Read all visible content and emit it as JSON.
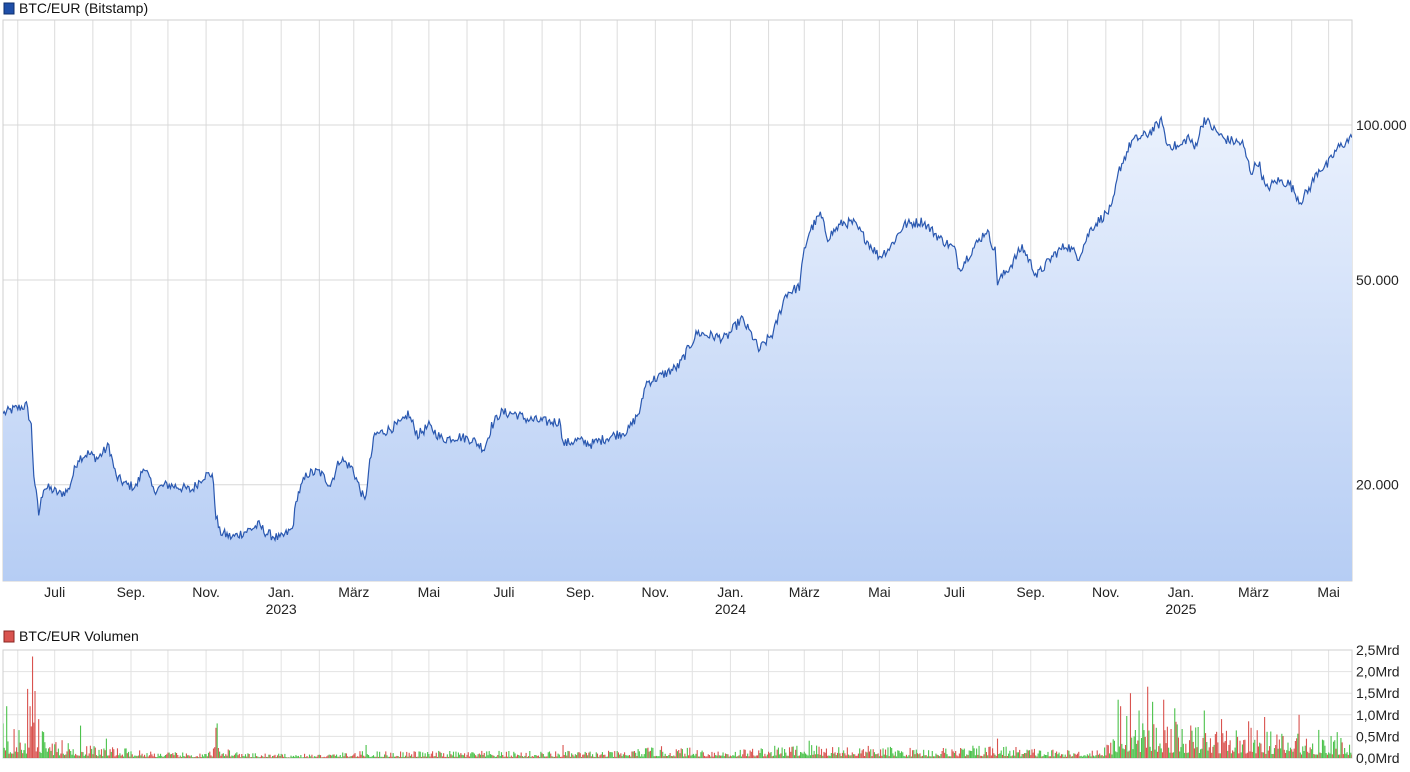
{
  "price_panel": {
    "legend_label": "BTC/EUR (Bitstamp)",
    "legend_color": "#1f4fa8",
    "line_color": "#2a58b0",
    "fill_top_color": "#eaf1fd",
    "fill_bottom_color": "#b6cdf4"
  },
  "volume_panel": {
    "legend_label": "BTC/EUR Volumen",
    "legend_color": "#d9534f",
    "up_color": "#4cc24c",
    "down_color": "#d9534f"
  },
  "chart_data": [
    {
      "type": "area",
      "title": "BTC/EUR (Bitstamp)",
      "y_scale": "log",
      "ylim": [
        13000,
        160000
      ],
      "y_ticks": [
        {
          "value": 20000,
          "label": "20.000"
        },
        {
          "value": 50000,
          "label": "50.000"
        },
        {
          "value": 100000,
          "label": "100.000"
        }
      ],
      "x_range": [
        "2022-05-20",
        "2025-05-20"
      ],
      "x_ticks": [
        {
          "date": "2022-07-01",
          "label": "Juli",
          "sub": ""
        },
        {
          "date": "2022-09-01",
          "label": "Sep.",
          "sub": ""
        },
        {
          "date": "2022-11-01",
          "label": "Nov.",
          "sub": ""
        },
        {
          "date": "2023-01-01",
          "label": "Jan.",
          "sub": "2023"
        },
        {
          "date": "2023-03-01",
          "label": "März",
          "sub": ""
        },
        {
          "date": "2023-05-01",
          "label": "Mai",
          "sub": ""
        },
        {
          "date": "2023-07-01",
          "label": "Juli",
          "sub": ""
        },
        {
          "date": "2023-09-01",
          "label": "Sep.",
          "sub": ""
        },
        {
          "date": "2023-11-01",
          "label": "Nov.",
          "sub": ""
        },
        {
          "date": "2024-01-01",
          "label": "Jan.",
          "sub": "2024"
        },
        {
          "date": "2024-03-01",
          "label": "März",
          "sub": ""
        },
        {
          "date": "2024-05-01",
          "label": "Mai",
          "sub": ""
        },
        {
          "date": "2024-07-01",
          "label": "Juli",
          "sub": ""
        },
        {
          "date": "2024-09-01",
          "label": "Sep.",
          "sub": ""
        },
        {
          "date": "2024-11-01",
          "label": "Nov.",
          "sub": ""
        },
        {
          "date": "2025-01-01",
          "label": "Jan.",
          "sub": "2025"
        },
        {
          "date": "2025-03-01",
          "label": "März",
          "sub": ""
        },
        {
          "date": "2025-05-01",
          "label": "Mai",
          "sub": ""
        }
      ],
      "grid": true,
      "series": [
        {
          "points": [
            [
              "2022-05-20",
              27500
            ],
            [
              "2022-05-28",
              28000
            ],
            [
              "2022-06-08",
              28500
            ],
            [
              "2022-06-12",
              26000
            ],
            [
              "2022-06-14",
              21000
            ],
            [
              "2022-06-18",
              17500
            ],
            [
              "2022-06-22",
              19800
            ],
            [
              "2022-06-28",
              19600
            ],
            [
              "2022-07-05",
              19200
            ],
            [
              "2022-07-12",
              19500
            ],
            [
              "2022-07-20",
              22500
            ],
            [
              "2022-07-28",
              23000
            ],
            [
              "2022-08-05",
              22500
            ],
            [
              "2022-08-14",
              23800
            ],
            [
              "2022-08-20",
              20700
            ],
            [
              "2022-08-28",
              20000
            ],
            [
              "2022-09-05",
              19800
            ],
            [
              "2022-09-12",
              21800
            ],
            [
              "2022-09-19",
              19500
            ],
            [
              "2022-09-30",
              20000
            ],
            [
              "2022-10-10",
              19800
            ],
            [
              "2022-10-20",
              19500
            ],
            [
              "2022-10-30",
              20800
            ],
            [
              "2022-11-06",
              21000
            ],
            [
              "2022-11-09",
              17500
            ],
            [
              "2022-11-12",
              16200
            ],
            [
              "2022-11-22",
              15800
            ],
            [
              "2022-12-05",
              16300
            ],
            [
              "2022-12-14",
              16700
            ],
            [
              "2022-12-20",
              16100
            ],
            [
              "2022-12-31",
              15700
            ],
            [
              "2023-01-10",
              16400
            ],
            [
              "2023-01-14",
              19000
            ],
            [
              "2023-01-22",
              21000
            ],
            [
              "2023-02-01",
              21200
            ],
            [
              "2023-02-10",
              20000
            ],
            [
              "2023-02-18",
              22500
            ],
            [
              "2023-02-28",
              21500
            ],
            [
              "2023-03-10",
              18500
            ],
            [
              "2023-03-14",
              22000
            ],
            [
              "2023-03-18",
              25000
            ],
            [
              "2023-03-28",
              25500
            ],
            [
              "2023-04-10",
              26500
            ],
            [
              "2023-04-14",
              27500
            ],
            [
              "2023-04-22",
              25000
            ],
            [
              "2023-05-01",
              26000
            ],
            [
              "2023-05-12",
              24500
            ],
            [
              "2023-05-25",
              24800
            ],
            [
              "2023-06-05",
              24500
            ],
            [
              "2023-06-15",
              23500
            ],
            [
              "2023-06-21",
              26000
            ],
            [
              "2023-06-28",
              27600
            ],
            [
              "2023-07-10",
              27500
            ],
            [
              "2023-07-20",
              26800
            ],
            [
              "2023-08-05",
              26500
            ],
            [
              "2023-08-16",
              26500
            ],
            [
              "2023-08-18",
              24000
            ],
            [
              "2023-08-30",
              24400
            ],
            [
              "2023-09-10",
              24000
            ],
            [
              "2023-09-25",
              24800
            ],
            [
              "2023-10-10",
              25500
            ],
            [
              "2023-10-20",
              28000
            ],
            [
              "2023-10-24",
              31500
            ],
            [
              "2023-11-05",
              32500
            ],
            [
              "2023-11-20",
              34000
            ],
            [
              "2023-12-05",
              39500
            ],
            [
              "2023-12-15",
              39000
            ],
            [
              "2023-12-28",
              38500
            ],
            [
              "2024-01-10",
              42000
            ],
            [
              "2024-01-20",
              38500
            ],
            [
              "2024-01-24",
              36500
            ],
            [
              "2024-02-05",
              39500
            ],
            [
              "2024-02-15",
              47000
            ],
            [
              "2024-02-26",
              48500
            ],
            [
              "2024-03-01",
              57000
            ],
            [
              "2024-03-05",
              62000
            ],
            [
              "2024-03-14",
              67000
            ],
            [
              "2024-03-20",
              60500
            ],
            [
              "2024-04-01",
              64500
            ],
            [
              "2024-04-10",
              64500
            ],
            [
              "2024-04-20",
              60000
            ],
            [
              "2024-05-01",
              55500
            ],
            [
              "2024-05-10",
              58000
            ],
            [
              "2024-05-21",
              64000
            ],
            [
              "2024-06-05",
              65000
            ],
            [
              "2024-06-20",
              60000
            ],
            [
              "2024-07-01",
              57500
            ],
            [
              "2024-07-05",
              52500
            ],
            [
              "2024-07-15",
              57000
            ],
            [
              "2024-07-27",
              62500
            ],
            [
              "2024-08-03",
              57000
            ],
            [
              "2024-08-05",
              49500
            ],
            [
              "2024-08-15",
              53000
            ],
            [
              "2024-08-25",
              58000
            ],
            [
              "2024-09-06",
              51000
            ],
            [
              "2024-09-20",
              56000
            ],
            [
              "2024-09-30",
              58500
            ],
            [
              "2024-10-10",
              55500
            ],
            [
              "2024-10-20",
              63000
            ],
            [
              "2024-10-30",
              66500
            ],
            [
              "2024-11-06",
              69000
            ],
            [
              "2024-11-12",
              82000
            ],
            [
              "2024-11-22",
              93000
            ],
            [
              "2024-12-05",
              96000
            ],
            [
              "2024-12-17",
              102000
            ],
            [
              "2024-12-20",
              92000
            ],
            [
              "2024-12-31",
              90500
            ],
            [
              "2025-01-07",
              95000
            ],
            [
              "2025-01-12",
              90000
            ],
            [
              "2025-01-20",
              103000
            ],
            [
              "2025-01-28",
              98000
            ],
            [
              "2025-02-05",
              94000
            ],
            [
              "2025-02-20",
              92000
            ],
            [
              "2025-02-27",
              81000
            ],
            [
              "2025-03-05",
              85000
            ],
            [
              "2025-03-11",
              75000
            ],
            [
              "2025-03-20",
              78000
            ],
            [
              "2025-03-30",
              77000
            ],
            [
              "2025-04-08",
              71000
            ],
            [
              "2025-04-15",
              75000
            ],
            [
              "2025-04-23",
              82000
            ],
            [
              "2025-04-30",
              83500
            ],
            [
              "2025-05-08",
              90000
            ],
            [
              "2025-05-16",
              93000
            ],
            [
              "2025-05-20",
              94500
            ]
          ]
        }
      ]
    },
    {
      "type": "bar",
      "title": "BTC/EUR Volumen",
      "ylim": [
        0,
        2.5
      ],
      "y_unit": "Mrd",
      "y_ticks": [
        {
          "value": 0,
          "label": "0,0Mrd"
        },
        {
          "value": 0.5,
          "label": "0,5Mrd"
        },
        {
          "value": 1.0,
          "label": "1,0Mrd"
        },
        {
          "value": 1.5,
          "label": "1,5Mrd"
        },
        {
          "value": 2.0,
          "label": "2,0Mrd"
        },
        {
          "value": 2.5,
          "label": "2,5Mrd"
        }
      ],
      "x_range": [
        "2022-05-20",
        "2025-05-20"
      ],
      "volume_envelope": [
        [
          "2022-05-20",
          0.5
        ],
        [
          "2022-06-10",
          0.5
        ],
        [
          "2022-06-15",
          0.75
        ],
        [
          "2022-06-25",
          0.35
        ],
        [
          "2022-08-01",
          0.22
        ],
        [
          "2022-10-01",
          0.1
        ],
        [
          "2022-11-01",
          0.08
        ],
        [
          "2022-11-12",
          0.25
        ],
        [
          "2022-12-01",
          0.08
        ],
        [
          "2023-02-01",
          0.07
        ],
        [
          "2023-03-10",
          0.12
        ],
        [
          "2023-06-01",
          0.12
        ],
        [
          "2023-10-01",
          0.12
        ],
        [
          "2023-11-01",
          0.2
        ],
        [
          "2024-01-01",
          0.15
        ],
        [
          "2024-03-05",
          0.25
        ],
        [
          "2024-06-01",
          0.17
        ],
        [
          "2024-08-05",
          0.22
        ],
        [
          "2024-10-01",
          0.13
        ],
        [
          "2024-11-01",
          0.2
        ],
        [
          "2024-11-15",
          0.75
        ],
        [
          "2024-12-10",
          0.65
        ],
        [
          "2025-01-20",
          0.55
        ],
        [
          "2025-03-01",
          0.5
        ],
        [
          "2025-04-10",
          0.4
        ],
        [
          "2025-05-20",
          0.35
        ]
      ],
      "spikes": [
        [
          "2022-05-20",
          0.8
        ],
        [
          "2022-05-23",
          1.2
        ],
        [
          "2022-06-09",
          1.6
        ],
        [
          "2022-06-11",
          1.2
        ],
        [
          "2022-06-13",
          2.35
        ],
        [
          "2022-06-15",
          1.55
        ],
        [
          "2022-06-18",
          0.9
        ],
        [
          "2022-06-22",
          0.6
        ],
        [
          "2022-07-22",
          0.75
        ],
        [
          "2022-08-12",
          0.45
        ],
        [
          "2022-11-09",
          0.7
        ],
        [
          "2022-11-10",
          0.8
        ],
        [
          "2023-03-11",
          0.3
        ],
        [
          "2023-08-18",
          0.3
        ],
        [
          "2024-03-05",
          0.4
        ],
        [
          "2024-08-05",
          0.45
        ],
        [
          "2024-11-11",
          1.35
        ],
        [
          "2024-11-13",
          1.2
        ],
        [
          "2024-11-21",
          1.5
        ],
        [
          "2024-11-28",
          1.1
        ],
        [
          "2024-12-05",
          1.65
        ],
        [
          "2024-12-09",
          1.3
        ],
        [
          "2024-12-18",
          1.35
        ],
        [
          "2024-12-27",
          1.15
        ],
        [
          "2025-01-20",
          1.1
        ],
        [
          "2025-02-03",
          0.9
        ],
        [
          "2025-02-25",
          0.85
        ],
        [
          "2025-03-10",
          0.95
        ],
        [
          "2025-04-07",
          1.0
        ],
        [
          "2025-04-23",
          0.65
        ],
        [
          "2025-05-08",
          0.6
        ]
      ]
    }
  ]
}
